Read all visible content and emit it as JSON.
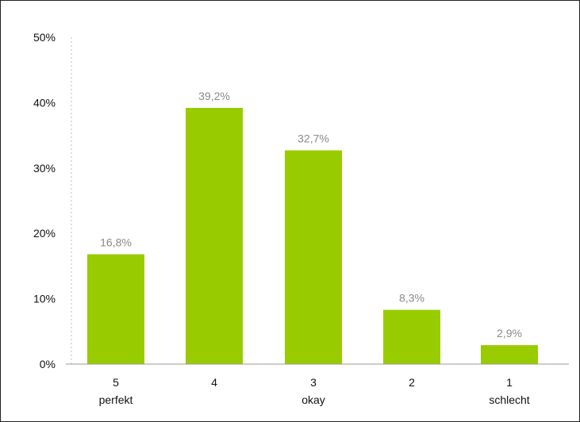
{
  "chart_data": {
    "type": "bar",
    "title": "",
    "xlabel": "",
    "ylabel": "",
    "categories": [
      "5",
      "4",
      "3",
      "2",
      "1"
    ],
    "category_sublabels": [
      "perfekt",
      "",
      "okay",
      "",
      "schlecht"
    ],
    "values": [
      16.8,
      39.2,
      32.7,
      8.3,
      2.9
    ],
    "data_labels": [
      "16,8%",
      "39,2%",
      "32,7%",
      "8,3%",
      "2,9%"
    ],
    "ylim": [
      0,
      50
    ],
    "yticks": [
      0,
      10,
      20,
      30,
      40,
      50
    ],
    "ytick_labels": [
      "0%",
      "10%",
      "20%",
      "30%",
      "40%",
      "50%"
    ],
    "bar_color": "#99cc00",
    "y_axis_style": "dotted",
    "grid": false,
    "legend": "none"
  }
}
